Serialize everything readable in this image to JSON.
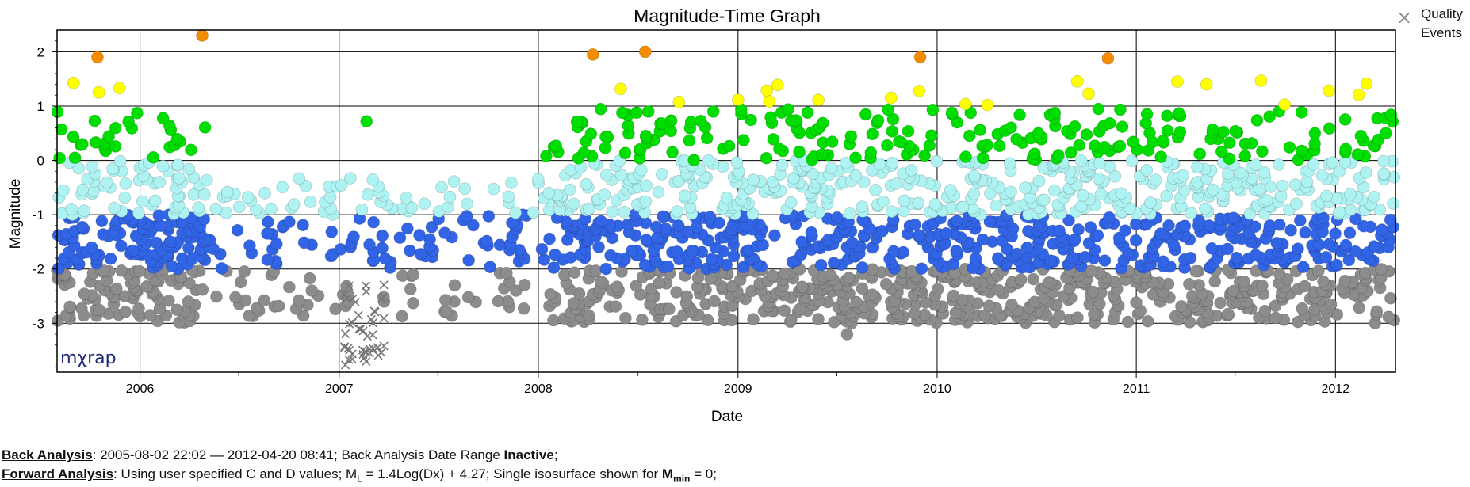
{
  "chart_data": {
    "type": "scatter",
    "title": "Magnitude-Time Graph",
    "xlabel": "Date",
    "ylabel": "Magnitude",
    "x_range": [
      "2005-08-02",
      "2012-04-20"
    ],
    "ylim": [
      -3.9,
      2.4
    ],
    "x_ticks": [
      "2006",
      "2007",
      "2008",
      "2009",
      "2010",
      "2011",
      "2012"
    ],
    "y_ticks": [
      "2",
      "1",
      "0",
      "-1",
      "-2",
      "-3"
    ],
    "y_tick_values": [
      2,
      1,
      0,
      -1,
      -2,
      -3
    ],
    "grid": true,
    "legend": {
      "label": "Quality Events",
      "position": "top-right outside"
    },
    "magnitude_bands": [
      {
        "range": [
          1.5,
          2.5
        ],
        "color": "#f28c00"
      },
      {
        "range": [
          1.0,
          1.5
        ],
        "color": "#ffff00"
      },
      {
        "range": [
          0.0,
          1.0
        ],
        "color": "#00dd00"
      },
      {
        "range": [
          -1.0,
          0.0
        ],
        "color": "#aef2f2"
      },
      {
        "range": [
          -2.0,
          -1.0
        ],
        "color": "#3264e6"
      },
      {
        "range": [
          -3.3,
          -2.0
        ],
        "color": "#8c8c8c"
      }
    ],
    "notable_events": [
      {
        "date": "2006-04-25",
        "magnitude": 2.3
      },
      {
        "date": "2008-07-15",
        "magnitude": 2.0
      },
      {
        "date": "2005-10-15",
        "magnitude": 1.9
      },
      {
        "date": "2008-04-10",
        "magnitude": 1.95
      },
      {
        "date": "2009-12-01",
        "magnitude": 1.9
      },
      {
        "date": "2010-11-10",
        "magnitude": 1.88
      },
      {
        "date": "2007-02-20",
        "magnitude": 0.72
      },
      {
        "date": "2009-07-20",
        "magnitude": -3.2
      }
    ],
    "quality_events_cluster": {
      "date_range": [
        "2007-01-10",
        "2007-03-25"
      ],
      "magnitude_range": [
        -3.8,
        -2.2
      ]
    }
  },
  "logo": "mχrap",
  "footer": {
    "back_label": "Back Analysis",
    "back_text": ": 2005-08-02 22:02 — 2012-04-20 08:41; Back Analysis Date Range ",
    "back_status": "Inactive",
    "back_end": ";",
    "fwd_label": "Forward Analysis",
    "fwd_text1": ": Using user specified C and D values; M",
    "fwd_sub": "L",
    "fwd_text2": " = 1.4Log(Dx) + 4.27; Single isosurface shown for ",
    "fwd_m": "M",
    "fwd_msub": "min",
    "fwd_text3": " = 0;"
  },
  "colors": {
    "grid": "#000000",
    "axis": "#000000"
  }
}
